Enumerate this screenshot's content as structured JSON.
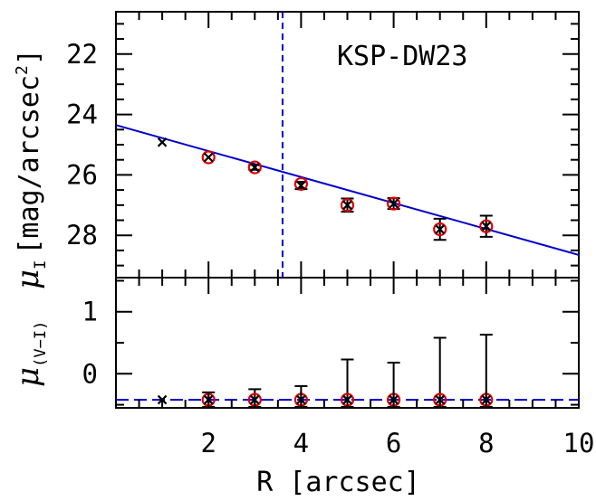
{
  "chart_data": [
    {
      "type": "scatter",
      "panel": "top",
      "annotation": "KSP-DW23",
      "xlabel": "R [arcsec]",
      "ylabel": "μ_I [mag/arcsec²]",
      "ylabel_main": "μ",
      "ylabel_sub": "I",
      "ylabel_unit": "[mag/arcsec",
      "ylabel_unit_sup": "2",
      "ylabel_unit_close": "]",
      "xlim": [
        0,
        10
      ],
      "ylim": [
        29.4,
        20.6
      ],
      "y_inverted": true,
      "x_ticks": [
        2,
        4,
        6,
        8,
        10
      ],
      "x_tick_labels": [
        "2",
        "4",
        "6",
        "8",
        "10"
      ],
      "y_ticks": [
        22,
        24,
        26,
        28
      ],
      "y_tick_labels": [
        "22",
        "24",
        "26",
        "28"
      ],
      "cross_points": [
        {
          "x": 1,
          "y": 24.92,
          "err": 0.05
        },
        {
          "x": 2,
          "y": 25.42,
          "err": 0.06
        },
        {
          "x": 3,
          "y": 25.75,
          "err": 0.08
        },
        {
          "x": 4,
          "y": 26.35,
          "err": 0.12
        },
        {
          "x": 5,
          "y": 27.0,
          "err": 0.22
        },
        {
          "x": 6,
          "y": 26.95,
          "err": 0.18
        },
        {
          "x": 7,
          "y": 27.8,
          "err": 0.35
        },
        {
          "x": 8,
          "y": 27.7,
          "err": 0.35
        }
      ],
      "circle_points": [
        {
          "x": 2,
          "y": 25.42
        },
        {
          "x": 3,
          "y": 25.75
        },
        {
          "x": 4,
          "y": 26.3
        },
        {
          "x": 5,
          "y": 27.0
        },
        {
          "x": 6,
          "y": 26.95
        },
        {
          "x": 7,
          "y": 27.8
        },
        {
          "x": 8,
          "y": 27.7
        }
      ],
      "fit_line": {
        "x": [
          0,
          10
        ],
        "y": [
          24.35,
          28.65
        ]
      },
      "vline_x": 3.6,
      "colors": {
        "fit": "#0000cc",
        "circle": "#dd0000",
        "cross": "#000000",
        "vline": "#0000cc"
      }
    },
    {
      "type": "scatter",
      "panel": "bottom",
      "ylabel": "μ_(V−I)",
      "ylabel_main": "μ",
      "ylabel_sub": "(V−I)",
      "xlim": [
        0,
        10
      ],
      "ylim": [
        -0.55,
        1.55
      ],
      "y_ticks": [
        0,
        1
      ],
      "y_tick_labels": [
        "0",
        "1"
      ],
      "cross_points": [
        {
          "x": 1,
          "y": -0.42,
          "err": 0.0
        },
        {
          "x": 2,
          "y": -0.42,
          "err": 0.12
        },
        {
          "x": 3,
          "y": -0.42,
          "err": 0.17
        },
        {
          "x": 4,
          "y": -0.42,
          "err": 0.22
        },
        {
          "x": 5,
          "y": -0.42,
          "err": 0.65
        },
        {
          "x": 6,
          "y": -0.42,
          "err": 0.6
        },
        {
          "x": 7,
          "y": -0.42,
          "err": 1.0
        },
        {
          "x": 8,
          "y": -0.42,
          "err": 1.05
        }
      ],
      "circle_points": [
        {
          "x": 2,
          "y": -0.42
        },
        {
          "x": 3,
          "y": -0.42
        },
        {
          "x": 4,
          "y": -0.42
        },
        {
          "x": 5,
          "y": -0.42
        },
        {
          "x": 6,
          "y": -0.42
        },
        {
          "x": 7,
          "y": -0.42
        },
        {
          "x": 8,
          "y": -0.42
        }
      ],
      "hline_y": -0.42,
      "colors": {
        "hline": "#0000cc",
        "circle": "#dd0000",
        "cross": "#000000"
      }
    }
  ]
}
